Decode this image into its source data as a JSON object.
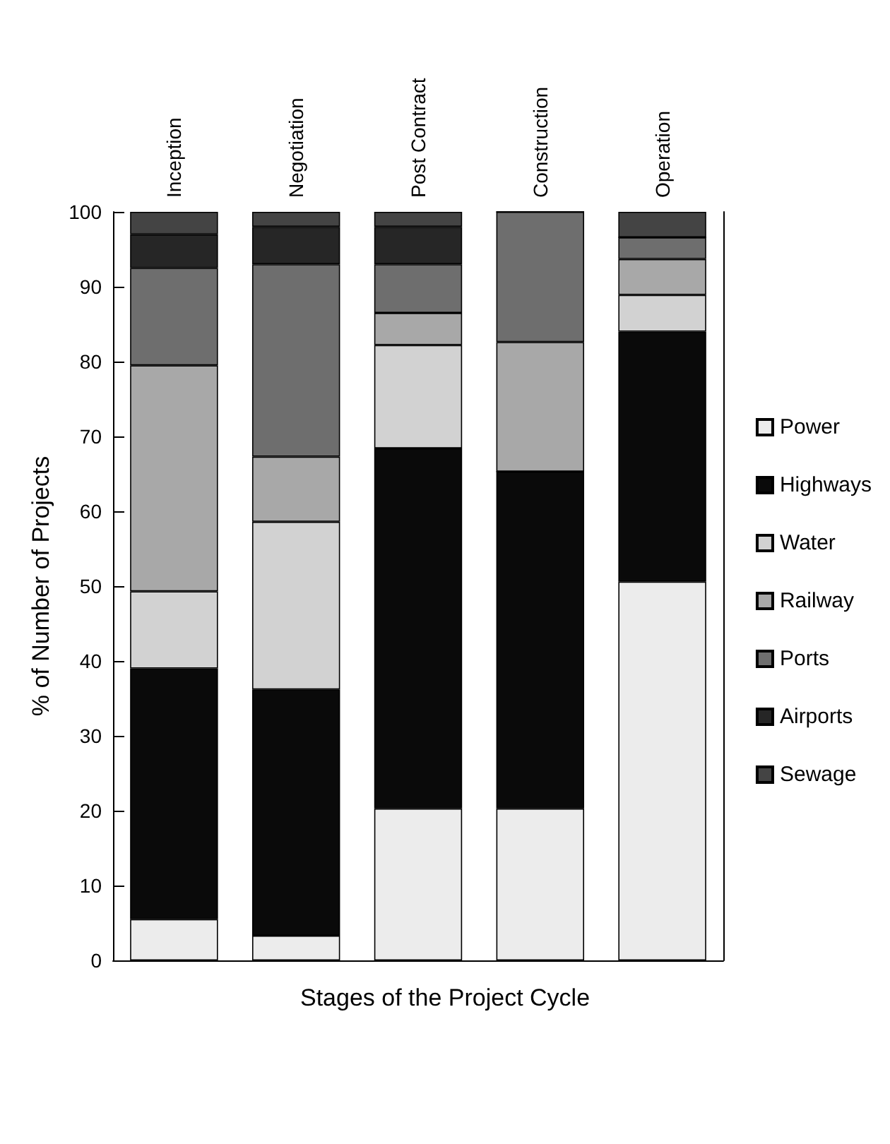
{
  "chart_data": {
    "type": "bar",
    "stacked": true,
    "xlabel": "Stages of the Project Cycle",
    "ylabel": "% of Number of Projects",
    "categories": [
      "Inception",
      "Negotiation",
      "Post Contract",
      "Construction",
      "Operation"
    ],
    "series": [
      {
        "name": "Power",
        "color": "#ececec",
        "values": [
          5.5,
          3.3,
          20.3,
          20.3,
          50.6
        ]
      },
      {
        "name": "Highways",
        "color": "#0a0a0a",
        "values": [
          33.5,
          32.9,
          48.1,
          45,
          33.4
        ]
      },
      {
        "name": "Water",
        "color": "#d2d2d2",
        "values": [
          10.3,
          22.4,
          13.8,
          0,
          4.9
        ]
      },
      {
        "name": "Railway",
        "color": "#a8a8a8",
        "values": [
          30.2,
          8.7,
          4.3,
          17.3,
          4.8
        ]
      },
      {
        "name": "Ports",
        "color": "#6e6e6e",
        "values": [
          13,
          25.7,
          6.5,
          17.4,
          2.9
        ]
      },
      {
        "name": "Airports",
        "color": "#262626",
        "values": [
          4.5,
          5,
          5,
          0,
          0
        ]
      },
      {
        "name": "Sewage",
        "color": "#444444",
        "values": [
          3,
          2,
          2,
          0,
          3.4
        ]
      }
    ],
    "ylim": [
      0,
      100
    ],
    "yticks": [
      0,
      10,
      20,
      30,
      40,
      50,
      60,
      70,
      80,
      90,
      100
    ],
    "grid": false,
    "legend": "right"
  }
}
